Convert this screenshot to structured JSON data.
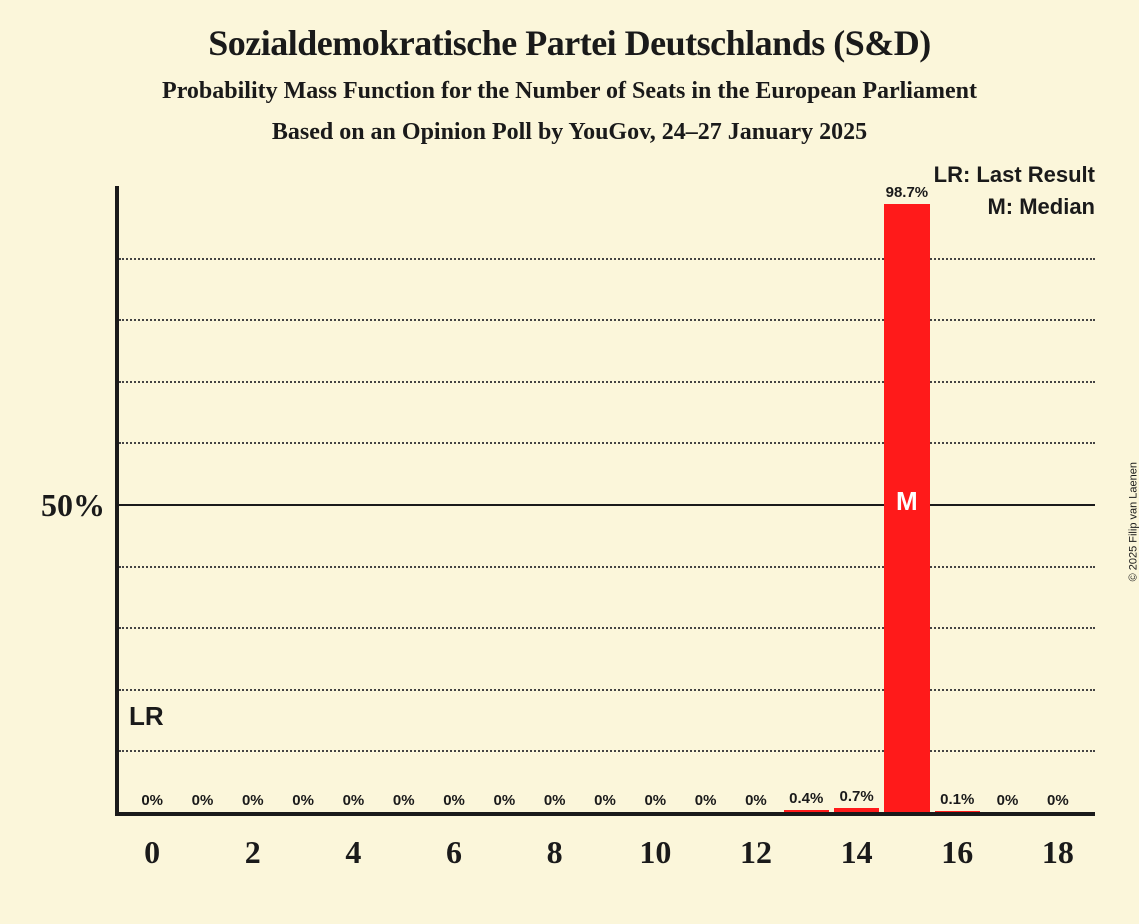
{
  "chart": {
    "type": "bar",
    "title": "Sozialdemokratische Partei Deutschlands (S&D)",
    "subtitle1": "Probability Mass Function for the Number of Seats in the European Parliament",
    "subtitle2": "Based on an Opinion Poll by YouGov, 24–27 January 2025",
    "copyright": "© 2025 Filip van Laenen",
    "background_color": "#fbf6da",
    "bar_color": "#ff1a1a",
    "axis_color": "#1a1a1a",
    "grid_color": "#444444",
    "median_text_color": "#ffffff",
    "title_fontsize": 36,
    "subtitle_fontsize": 24,
    "xlabel_fontsize": 32,
    "ylabel_fontsize": 32,
    "barlabel_fontsize": 15,
    "legend_fontsize": 22,
    "lr_fontsize": 26,
    "median_fontsize": 26,
    "xlim": [
      0,
      18
    ],
    "ylim": [
      0,
      100
    ],
    "x_ticks": [
      0,
      2,
      4,
      6,
      8,
      10,
      12,
      14,
      16,
      18
    ],
    "y_major_tick": 50,
    "y_minor_step": 10,
    "bar_width_ratio": 0.9,
    "bars": [
      {
        "x": 0,
        "value": 0,
        "label": "0%"
      },
      {
        "x": 1,
        "value": 0,
        "label": "0%"
      },
      {
        "x": 2,
        "value": 0,
        "label": "0%"
      },
      {
        "x": 3,
        "value": 0,
        "label": "0%"
      },
      {
        "x": 4,
        "value": 0,
        "label": "0%"
      },
      {
        "x": 5,
        "value": 0,
        "label": "0%"
      },
      {
        "x": 6,
        "value": 0,
        "label": "0%"
      },
      {
        "x": 7,
        "value": 0,
        "label": "0%"
      },
      {
        "x": 8,
        "value": 0,
        "label": "0%"
      },
      {
        "x": 9,
        "value": 0,
        "label": "0%"
      },
      {
        "x": 10,
        "value": 0,
        "label": "0%"
      },
      {
        "x": 11,
        "value": 0,
        "label": "0%"
      },
      {
        "x": 12,
        "value": 0,
        "label": "0%"
      },
      {
        "x": 13,
        "value": 0.4,
        "label": "0.4%"
      },
      {
        "x": 14,
        "value": 0.7,
        "label": "0.7%"
      },
      {
        "x": 15,
        "value": 98.7,
        "label": "98.7%"
      },
      {
        "x": 16,
        "value": 0.1,
        "label": "0.1%"
      },
      {
        "x": 17,
        "value": 0,
        "label": "0%"
      },
      {
        "x": 18,
        "value": 0,
        "label": "0%"
      }
    ],
    "median_x": 15,
    "median_label": "M",
    "lr_x": 0,
    "lr_label": "LR",
    "legend_lr": "LR: Last Result",
    "legend_m": "M: Median",
    "y_label_text": "50%"
  }
}
